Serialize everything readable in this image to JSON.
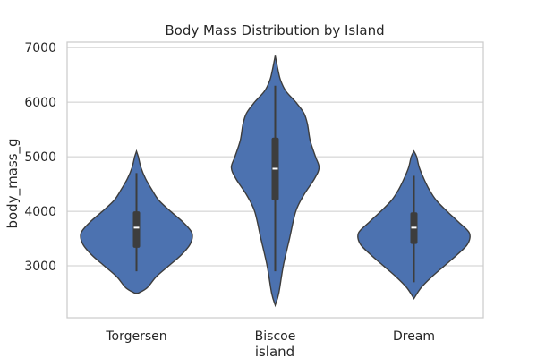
{
  "chart_data": {
    "type": "violin",
    "title": "Body Mass Distribution by Island",
    "xlabel": "island",
    "ylabel": "body_mass_g",
    "ylim": [
      2050,
      7100
    ],
    "yticks": [
      3000,
      4000,
      5000,
      6000,
      7000
    ],
    "grid": "y",
    "color": "#4c72b0",
    "edge_color": "#3d3d3d",
    "box_color": "#3d3d3d",
    "median_color": "#ffffff",
    "categories": [
      "Torgersen",
      "Biscoe",
      "Dream"
    ],
    "violins": [
      {
        "category": "Torgersen",
        "range": [
          2900,
          4700
        ],
        "q1": 3330,
        "median": 3700,
        "q3": 4000,
        "profile": [
          [
            2500,
            0.02
          ],
          [
            2600,
            0.12
          ],
          [
            2800,
            0.22
          ],
          [
            3000,
            0.36
          ],
          [
            3200,
            0.5
          ],
          [
            3400,
            0.6
          ],
          [
            3600,
            0.62
          ],
          [
            3800,
            0.52
          ],
          [
            4000,
            0.38
          ],
          [
            4200,
            0.25
          ],
          [
            4400,
            0.17
          ],
          [
            4600,
            0.1
          ],
          [
            4800,
            0.05
          ],
          [
            5000,
            0.02
          ],
          [
            5100,
            0.0
          ]
        ]
      },
      {
        "category": "Biscoe",
        "range": [
          2900,
          6300
        ],
        "q1": 4200,
        "median": 4780,
        "q3": 5350,
        "profile": [
          [
            2280,
            0.0
          ],
          [
            2500,
            0.04
          ],
          [
            3000,
            0.09
          ],
          [
            3500,
            0.16
          ],
          [
            4000,
            0.23
          ],
          [
            4300,
            0.32
          ],
          [
            4600,
            0.44
          ],
          [
            4800,
            0.49
          ],
          [
            5000,
            0.45
          ],
          [
            5300,
            0.39
          ],
          [
            5600,
            0.36
          ],
          [
            5800,
            0.32
          ],
          [
            6000,
            0.23
          ],
          [
            6200,
            0.12
          ],
          [
            6400,
            0.06
          ],
          [
            6600,
            0.03
          ],
          [
            6850,
            0.0
          ]
        ]
      },
      {
        "category": "Dream",
        "range": [
          2700,
          4650
        ],
        "q1": 3400,
        "median": 3700,
        "q3": 3980,
        "profile": [
          [
            2400,
            0.0
          ],
          [
            2600,
            0.08
          ],
          [
            2800,
            0.2
          ],
          [
            3000,
            0.34
          ],
          [
            3200,
            0.48
          ],
          [
            3400,
            0.6
          ],
          [
            3600,
            0.62
          ],
          [
            3800,
            0.5
          ],
          [
            4000,
            0.37
          ],
          [
            4200,
            0.25
          ],
          [
            4400,
            0.17
          ],
          [
            4600,
            0.11
          ],
          [
            4800,
            0.06
          ],
          [
            5000,
            0.03
          ],
          [
            5100,
            0.0
          ]
        ]
      }
    ]
  }
}
